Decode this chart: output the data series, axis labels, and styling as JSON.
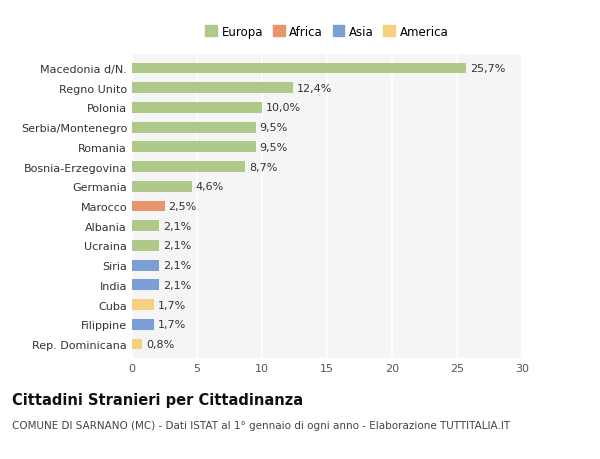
{
  "categories": [
    "Macedonia d/N.",
    "Regno Unito",
    "Polonia",
    "Serbia/Montenegro",
    "Romania",
    "Bosnia-Erzegovina",
    "Germania",
    "Marocco",
    "Albania",
    "Ucraina",
    "Siria",
    "India",
    "Cuba",
    "Filippine",
    "Rep. Dominicana"
  ],
  "values": [
    25.7,
    12.4,
    10.0,
    9.5,
    9.5,
    8.7,
    4.6,
    2.5,
    2.1,
    2.1,
    2.1,
    2.1,
    1.7,
    1.7,
    0.8
  ],
  "labels": [
    "25,7%",
    "12,4%",
    "10,0%",
    "9,5%",
    "9,5%",
    "8,7%",
    "4,6%",
    "2,5%",
    "2,1%",
    "2,1%",
    "2,1%",
    "2,1%",
    "1,7%",
    "1,7%",
    "0,8%"
  ],
  "colors": [
    "#aec98a",
    "#aec98a",
    "#aec98a",
    "#aec98a",
    "#aec98a",
    "#aec98a",
    "#aec98a",
    "#e8956d",
    "#aec98a",
    "#aec98a",
    "#7b9fd4",
    "#7b9fd4",
    "#f5d080",
    "#7b9fd4",
    "#f5d080"
  ],
  "legend_labels": [
    "Europa",
    "Africa",
    "Asia",
    "America"
  ],
  "legend_colors": [
    "#aec98a",
    "#e8956d",
    "#7b9fd4",
    "#f5d080"
  ],
  "title": "Cittadini Stranieri per Cittadinanza",
  "subtitle": "COMUNE DI SARNANO (MC) - Dati ISTAT al 1° gennaio di ogni anno - Elaborazione TUTTITALIA.IT",
  "xlim": [
    0,
    30
  ],
  "xticks": [
    0,
    5,
    10,
    15,
    20,
    25,
    30
  ],
  "background_color": "#ffffff",
  "plot_bg_color": "#f5f5f5",
  "grid_color": "#ffffff",
  "bar_height": 0.55,
  "title_fontsize": 10.5,
  "subtitle_fontsize": 7.5,
  "tick_fontsize": 8,
  "label_fontsize": 8
}
